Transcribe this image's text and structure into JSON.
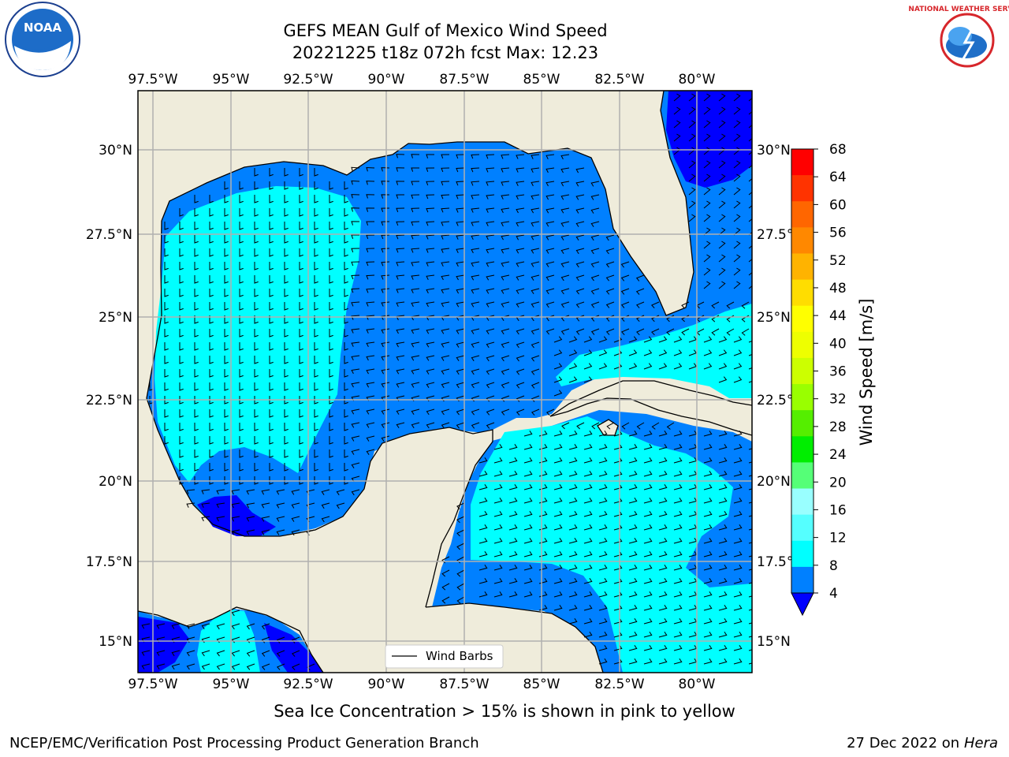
{
  "header": {
    "title_line1": "GEFS MEAN Gulf of Mexico Wind Speed",
    "title_line2": "20221225 t18z 072h fcst   Max: 12.23",
    "logo_left": "noara-logo",
    "logo_left_text": "NOAA",
    "logo_right": "nws-logo",
    "logo_right_text": "NATIONAL WEATHER SERVICE"
  },
  "map": {
    "lon_ticks": [
      "97.5°W",
      "95°W",
      "92.5°W",
      "90°W",
      "87.5°W",
      "85°W",
      "82.5°W",
      "80°W"
    ],
    "lat_ticks": [
      "30°N",
      "27.5°N",
      "25°N",
      "22.5°N",
      "20°N",
      "17.5°N",
      "15°N"
    ],
    "legend_label": "Wind Barbs",
    "colors": {
      "land": "#efecdb",
      "ocean_4_8": "#0080ff",
      "ocean_8_12": "#00ffff",
      "ocean_lt4": "#0000ff"
    }
  },
  "colorbar": {
    "label": "Wind Speed [m/s]",
    "ticks": [
      "68",
      "64",
      "60",
      "56",
      "52",
      "48",
      "44",
      "40",
      "36",
      "32",
      "28",
      "24",
      "20",
      "16",
      "12",
      "8",
      "4"
    ],
    "colors": [
      "#ff0000",
      "#ff3300",
      "#ff6600",
      "#ff8800",
      "#ffb300",
      "#ffdd00",
      "#ffff00",
      "#eeff00",
      "#ccff00",
      "#99ff00",
      "#55ee00",
      "#00ee00",
      "#55ff77",
      "#99ffff",
      "#55ffff",
      "#00ffff",
      "#0080ff"
    ],
    "under_color": "#0000ff"
  },
  "footer": {
    "note": "Sea Ice Concentration > 15% is shown in pink to yellow",
    "left": "NCEP/EMC/Verification Post Processing Product Generation Branch",
    "right_date": "27 Dec 2022 on",
    "right_machine": "Hera"
  }
}
